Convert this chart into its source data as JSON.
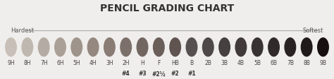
{
  "title": "PENCIL GRADING CHART",
  "title_fontsize": 10,
  "hardest_label": "Hardest",
  "softest_label": "Softest",
  "grades": [
    "9H",
    "8H",
    "7H",
    "6H",
    "5H",
    "4H",
    "3H",
    "2H",
    "H",
    "F",
    "HB",
    "B",
    "2B",
    "3B",
    "4B",
    "5B",
    "6B",
    "7B",
    "8B",
    "9B"
  ],
  "us_grades": [
    {
      "label": "#4",
      "grade_index": 7
    },
    {
      "label": "#3",
      "grade_index": 8
    },
    {
      "label": "#2½",
      "grade_index": 9
    },
    {
      "label": "#2",
      "grade_index": 10
    },
    {
      "label": "#1",
      "grade_index": 11
    }
  ],
  "colors": [
    "#c8c0b8",
    "#beb8b0",
    "#b4aca4",
    "#aaa098",
    "#9e948c",
    "#948880",
    "#887c74",
    "#7c706a",
    "#726660",
    "#6a5e58",
    "#605450",
    "#565050",
    "#4e4848",
    "#464040",
    "#403a3a",
    "#383232",
    "#302a2a",
    "#282222",
    "#201a1a",
    "#181010"
  ],
  "bg_color": "#f0eeec",
  "line_color": "#aaaaaa",
  "label_fontsize": 5.5,
  "us_fontsize": 5.5,
  "hardest_softest_fontsize": 6
}
